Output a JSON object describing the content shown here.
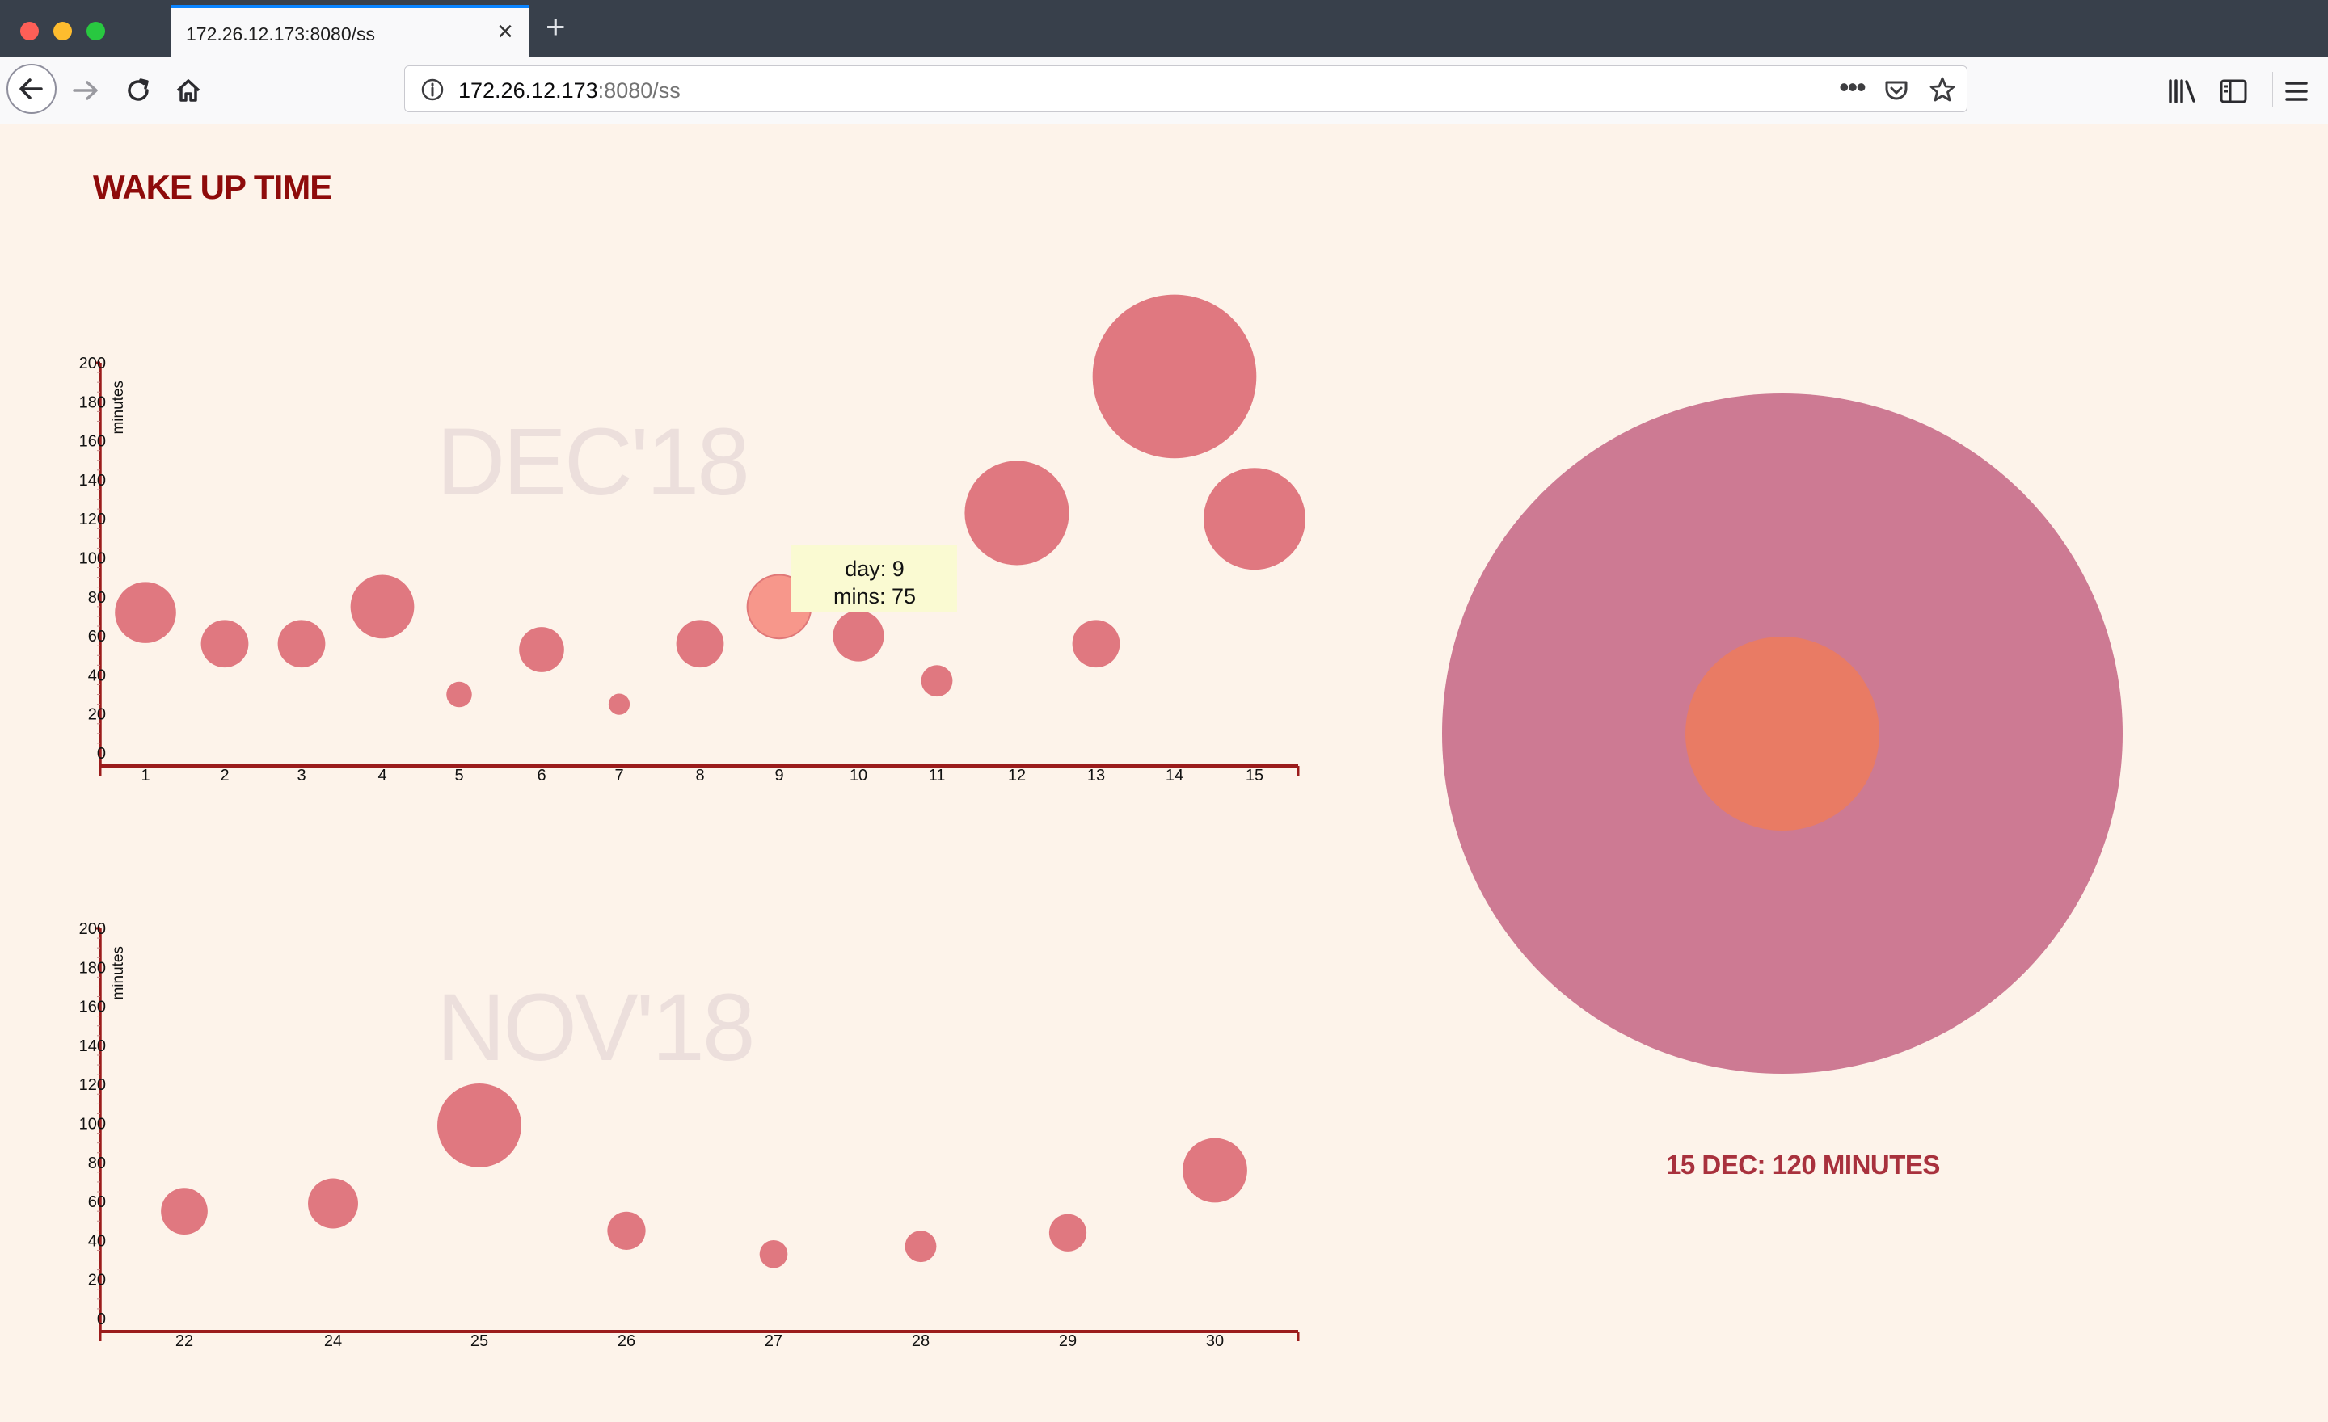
{
  "browser": {
    "tab_title": "172.26.12.173:8080/ss",
    "url_host": "172.26.12.173",
    "url_rest": ":8080/ss"
  },
  "page": {
    "title": "WAKE UP TIME",
    "summary": "15 DEC: 120 MINUTES"
  },
  "colors": {
    "background": "#fdf3ea",
    "bubble": "#e07880",
    "bubble_hover": "#f7978b",
    "axis": "#9b1c1c",
    "watermark": "#ecdfdc",
    "title": "#8e0b0b",
    "outer_circle": "#cd7a93",
    "inner_circle": "#e97b64",
    "tooltip": "#fafad2"
  },
  "tooltip": {
    "day_line": "day: 9",
    "mins_line": "mins: 75"
  },
  "chart_data": [
    {
      "type": "scatter",
      "title": "DEC'18",
      "xlabel": "",
      "ylabel": "minutes",
      "ylim": [
        0,
        200
      ],
      "y_ticks": [
        0,
        20,
        40,
        60,
        80,
        100,
        120,
        140,
        160,
        180,
        200
      ],
      "x": [
        1,
        2,
        3,
        4,
        5,
        6,
        7,
        8,
        9,
        10,
        11,
        12,
        13,
        14,
        15
      ],
      "y": [
        72,
        56,
        56,
        75,
        30,
        53,
        25,
        56,
        75,
        60,
        37,
        123,
        56,
        193,
        120
      ],
      "highlight_x": 9
    },
    {
      "type": "scatter",
      "title": "NOV'18",
      "xlabel": "",
      "ylabel": "minutes",
      "ylim": [
        0,
        200
      ],
      "y_ticks": [
        0,
        20,
        40,
        60,
        80,
        100,
        120,
        140,
        160,
        180,
        200
      ],
      "x": [
        22,
        24,
        25,
        26,
        27,
        28,
        29,
        30
      ],
      "y": [
        55,
        59,
        99,
        45,
        33,
        37,
        44,
        76
      ]
    }
  ]
}
